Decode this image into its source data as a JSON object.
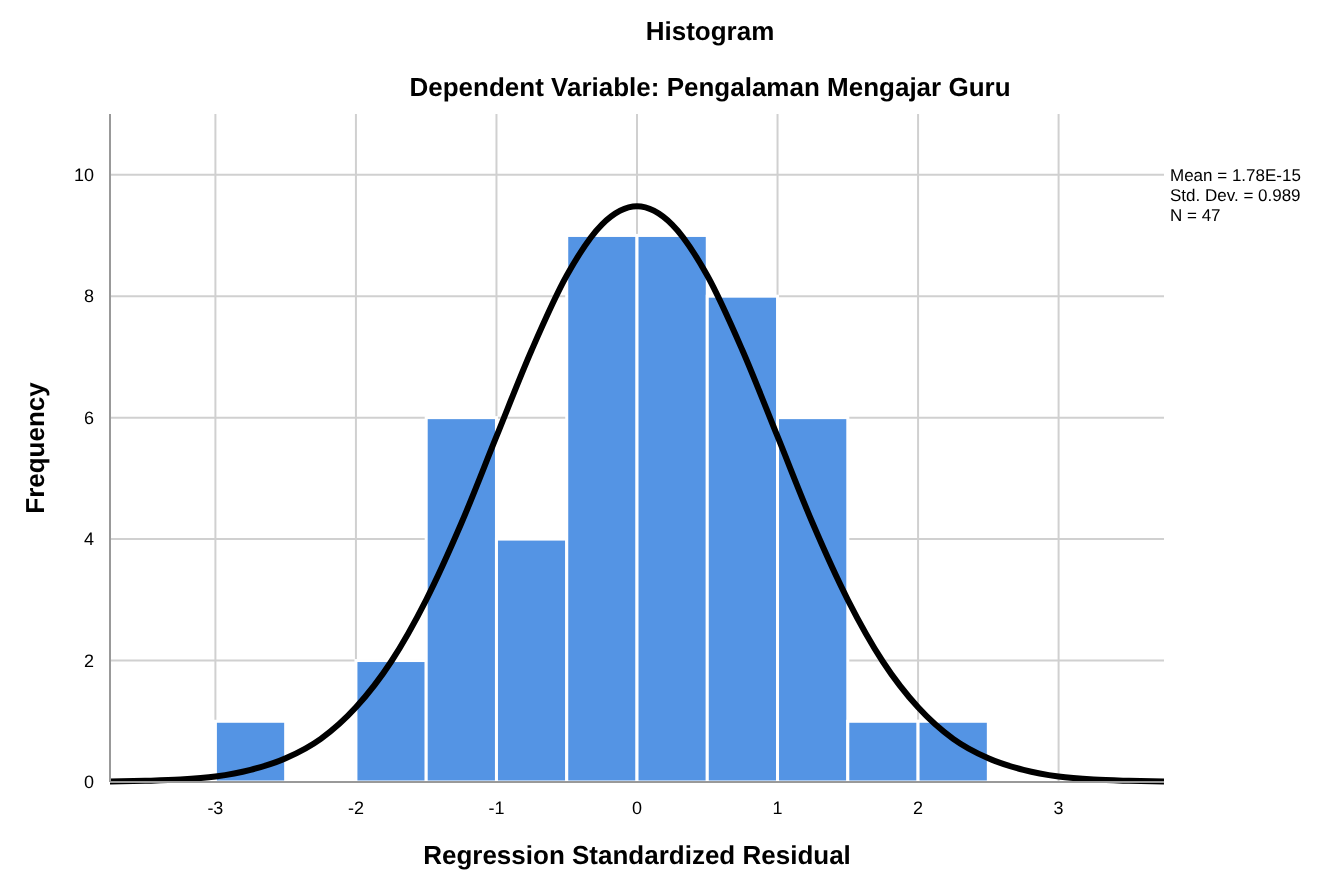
{
  "chart_data": {
    "type": "histogram",
    "title": "Histogram",
    "subtitle": "Dependent Variable: Pengalaman Mengajar Guru",
    "xlabel": "Regression Standardized Residual",
    "ylabel": "Frequency",
    "bins": [
      -3,
      -2.5,
      -2,
      -1.5,
      -1,
      -0.5,
      0,
      0.5,
      1,
      1.5,
      2,
      2.5
    ],
    "values": [
      1,
      0,
      2,
      6,
      4,
      9,
      9,
      8,
      6,
      1,
      1
    ],
    "color": "#5494e4",
    "series": [
      {
        "type": "line",
        "color": "#000000",
        "x": [
          -3.75,
          -3.5,
          -3.25,
          -3,
          -2.75,
          -2.5,
          -2.25,
          -2,
          -1.75,
          -1.5,
          -1.25,
          -1,
          -0.75,
          -0.5,
          -0.25,
          0,
          0.25,
          0.5,
          0.75,
          1,
          1.25,
          1.5,
          1.75,
          2,
          2.25,
          2.5,
          2.75,
          3,
          3.25,
          3.5,
          3.75
        ],
        "values": [
          0.01,
          0.02,
          0.04,
          0.09,
          0.2,
          0.39,
          0.71,
          1.23,
          1.98,
          3.0,
          4.26,
          5.69,
          7.11,
          8.34,
          9.18,
          9.48,
          9.18,
          8.34,
          7.11,
          5.69,
          4.26,
          3.0,
          1.98,
          1.23,
          0.71,
          0.39,
          0.2,
          0.09,
          0.04,
          0.02,
          0.01
        ]
      }
    ],
    "xlim": [
      -3.75,
      3.75
    ],
    "ylim": [
      0,
      11
    ],
    "xticks": [
      -3,
      -2,
      -1,
      0,
      1,
      2,
      3
    ],
    "yticks": [
      0,
      2,
      4,
      6,
      8,
      10
    ],
    "grid": true,
    "annotations": [
      "Mean = 1.78E-15",
      "Std. Dev. = 0.989",
      "N = 47"
    ]
  }
}
